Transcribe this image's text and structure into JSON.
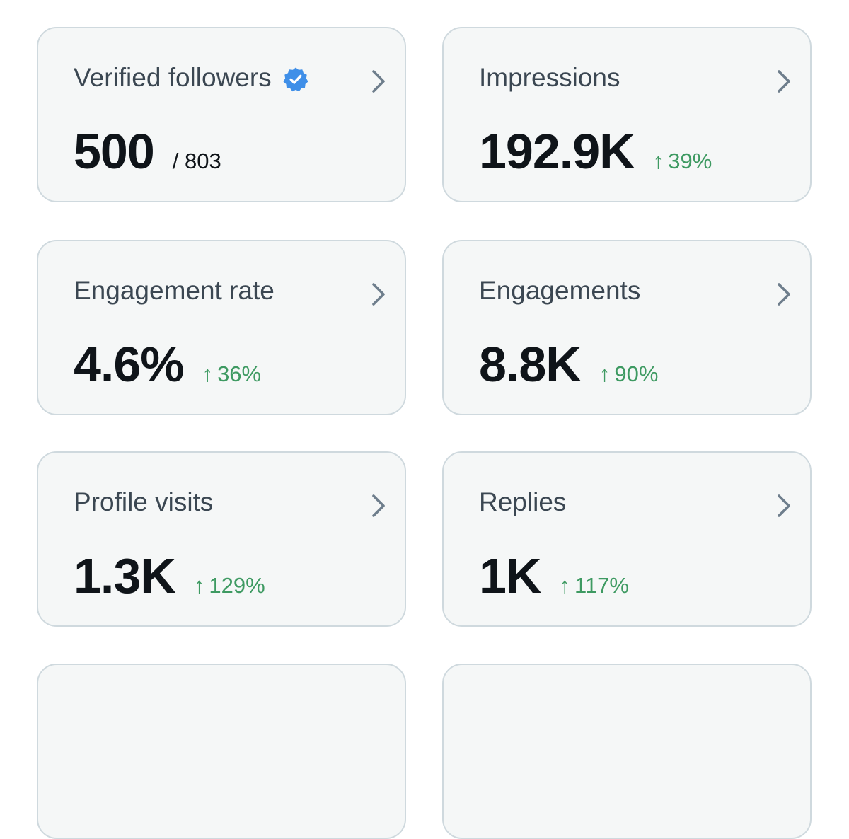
{
  "colors": {
    "card_bg": "#f5f7f7",
    "card_border": "#cfd9de",
    "title": "#3b4752",
    "value": "#0f1419",
    "positive": "#3e9a62",
    "verified": "#3f8fe8",
    "chevron": "#6e7e8c"
  },
  "icons": {
    "verified": "verified-badge-icon",
    "chevron": "chevron-right-icon",
    "arrow_up": "arrow-up-icon"
  },
  "metrics": [
    {
      "title": "Verified followers",
      "value": "500",
      "denominator": "/ 803"
    },
    {
      "title": "Impressions",
      "value": "192.9K",
      "arrow": "↑",
      "change": "39%"
    },
    {
      "title": "Engagement rate",
      "value": "4.6%",
      "arrow": "↑",
      "change": "36%"
    },
    {
      "title": "Engagements",
      "value": "8.8K",
      "arrow": "↑",
      "change": "90%"
    },
    {
      "title": "Profile visits",
      "value": "1.3K",
      "arrow": "↑",
      "change": "129%"
    },
    {
      "title": "Replies",
      "value": "1K",
      "arrow": "↑",
      "change": "117%"
    }
  ]
}
